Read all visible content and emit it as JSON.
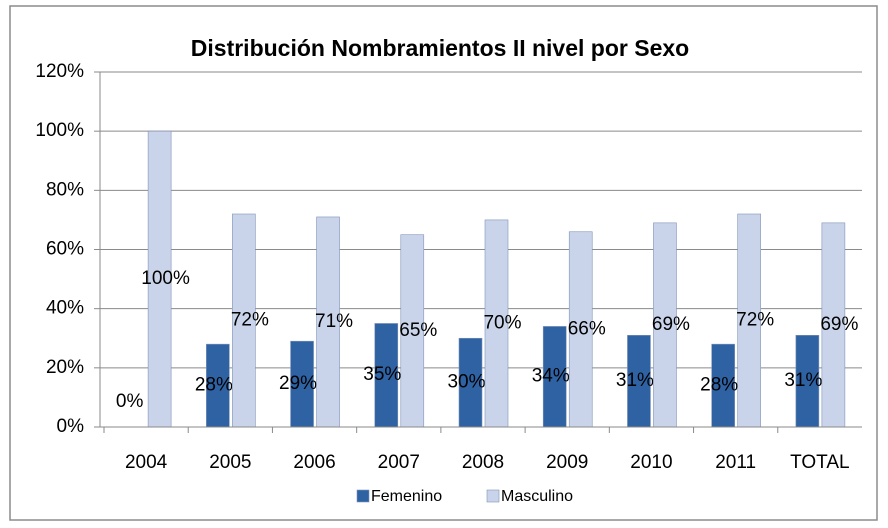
{
  "chart_data": {
    "type": "bar",
    "title": "Distribución Nombramientos II nivel por Sexo",
    "categories": [
      "2004",
      "2005",
      "2006",
      "2007",
      "2008",
      "2009",
      "2010",
      "2011",
      "TOTAL"
    ],
    "series": [
      {
        "name": "Femenino",
        "color": "#2f62a3",
        "values": [
          0,
          28,
          29,
          35,
          30,
          34,
          31,
          28,
          31
        ],
        "value_labels": [
          "0%",
          "28%",
          "29%",
          "35%",
          "30%",
          "34%",
          "31%",
          "28%",
          "31%"
        ]
      },
      {
        "name": "Masculino",
        "color": "#c9d4ea",
        "values": [
          100,
          72,
          71,
          65,
          70,
          66,
          69,
          72,
          69
        ],
        "value_labels": [
          "100%",
          "72%",
          "71%",
          "65%",
          "70%",
          "66%",
          "69%",
          "72%",
          "69%"
        ]
      }
    ],
    "ylim": [
      0,
      120
    ],
    "yticks": [
      {
        "value": 0,
        "label": "0%"
      },
      {
        "value": 20,
        "label": "20%"
      },
      {
        "value": 40,
        "label": "40%"
      },
      {
        "value": 60,
        "label": "60%"
      },
      {
        "value": 80,
        "label": "80%"
      },
      {
        "value": 100,
        "label": "100%"
      },
      {
        "value": 120,
        "label": "120%"
      }
    ],
    "grid": true,
    "legend": "bottom"
  }
}
